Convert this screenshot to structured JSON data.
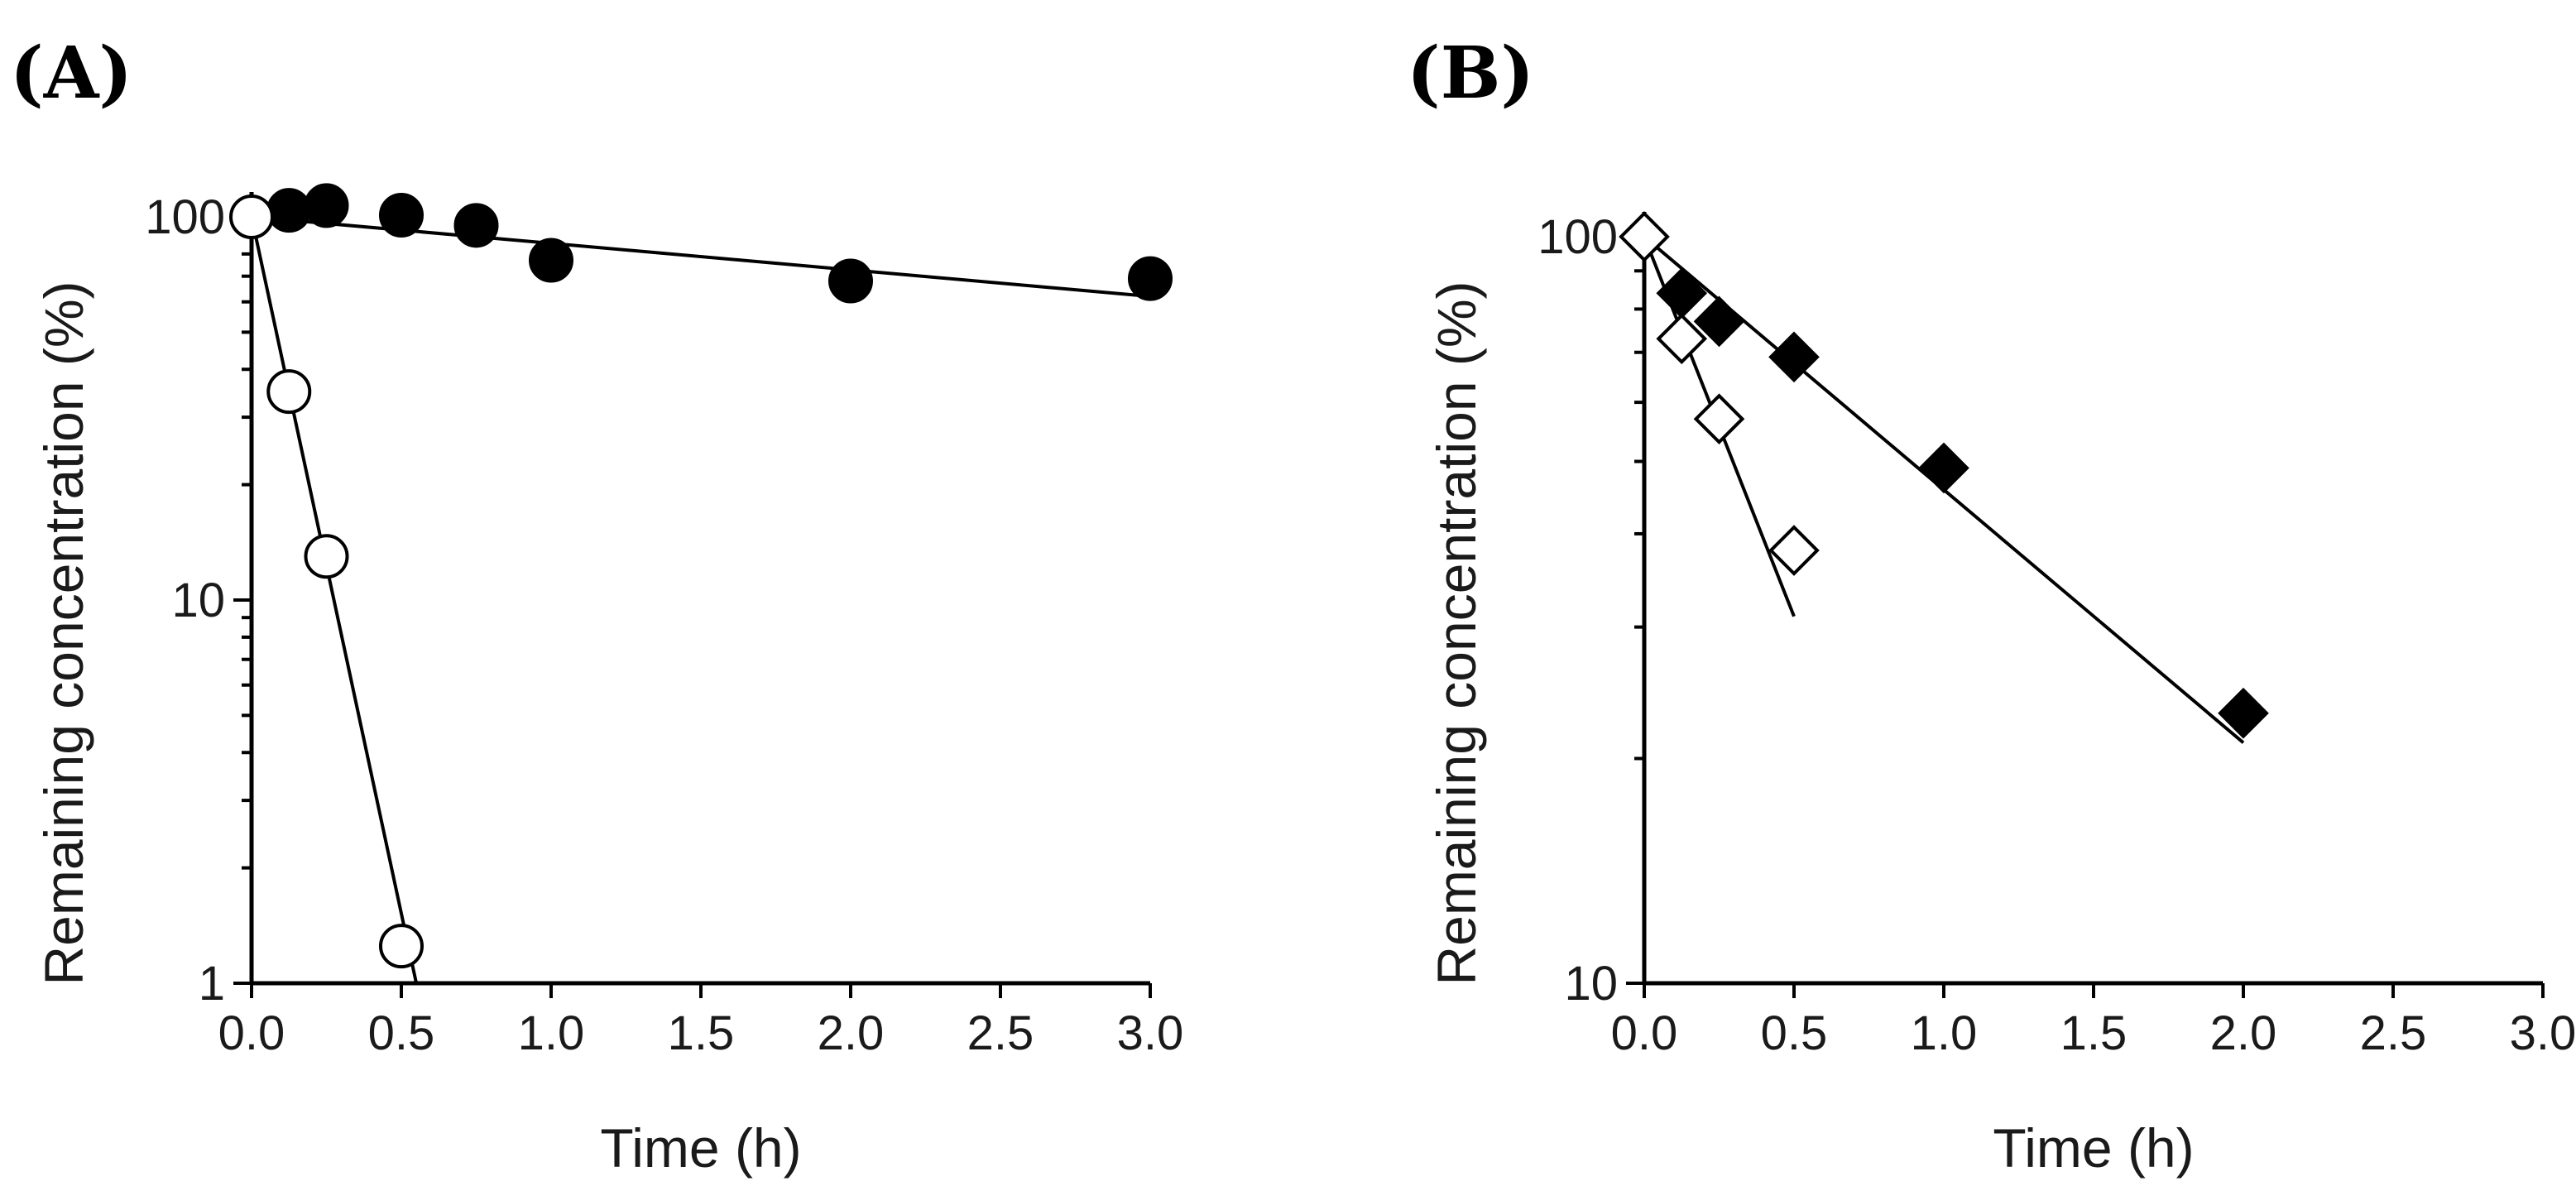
{
  "chart_data": [
    {
      "panel": "(A)",
      "type": "scatter",
      "yscale": "log",
      "xlabel": "Time (h)",
      "ylabel": "Remaining concentration (%)",
      "xlim": [
        0,
        3
      ],
      "ylim": [
        1,
        100
      ],
      "xticks": [
        "0.0",
        "0.5",
        "1.0",
        "1.5",
        "2.0",
        "2.5",
        "3.0"
      ],
      "yticks": [
        "1",
        "10",
        "100"
      ],
      "series": [
        {
          "name": "filled circles",
          "marker": "circle",
          "filled": true,
          "x": [
            0.125,
            0.25,
            0.5,
            0.75,
            1.0,
            2.0,
            3.0
          ],
          "y": [
            104,
            107,
            101,
            95,
            77,
            68,
            69
          ],
          "fit": {
            "x": [
              0,
              3.0
            ],
            "y": [
              100,
              62
            ]
          }
        },
        {
          "name": "open circles",
          "marker": "circle",
          "filled": false,
          "x": [
            0,
            0.125,
            0.25,
            0.5
          ],
          "y": [
            100,
            35,
            13,
            1.25
          ],
          "fit": {
            "x": [
              0,
              0.55
            ],
            "y": [
              100,
              1
            ]
          }
        }
      ]
    },
    {
      "panel": "(B)",
      "type": "scatter",
      "yscale": "log",
      "xlabel": "Time (h)",
      "ylabel": "Remaining concentration (%)",
      "xlim": [
        0,
        3
      ],
      "ylim": [
        10,
        100
      ],
      "xticks": [
        "0.0",
        "0.5",
        "1.0",
        "1.5",
        "2.0",
        "2.5",
        "3.0"
      ],
      "yticks": [
        "10",
        "100"
      ],
      "series": [
        {
          "name": "filled diamonds",
          "marker": "diamond",
          "filled": true,
          "x": [
            0.125,
            0.25,
            0.5,
            1.0,
            2.0
          ],
          "y": [
            84,
            77,
            69,
            49,
            23
          ],
          "fit": {
            "x": [
              0,
              2.0
            ],
            "y": [
              100,
              21
            ]
          }
        },
        {
          "name": "open diamonds",
          "marker": "diamond",
          "filled": false,
          "x": [
            0,
            0.125,
            0.25,
            0.5
          ],
          "y": [
            100,
            73,
            57,
            38
          ],
          "fit": {
            "x": [
              0,
              0.5
            ],
            "y": [
              100,
              31
            ]
          }
        }
      ]
    }
  ]
}
